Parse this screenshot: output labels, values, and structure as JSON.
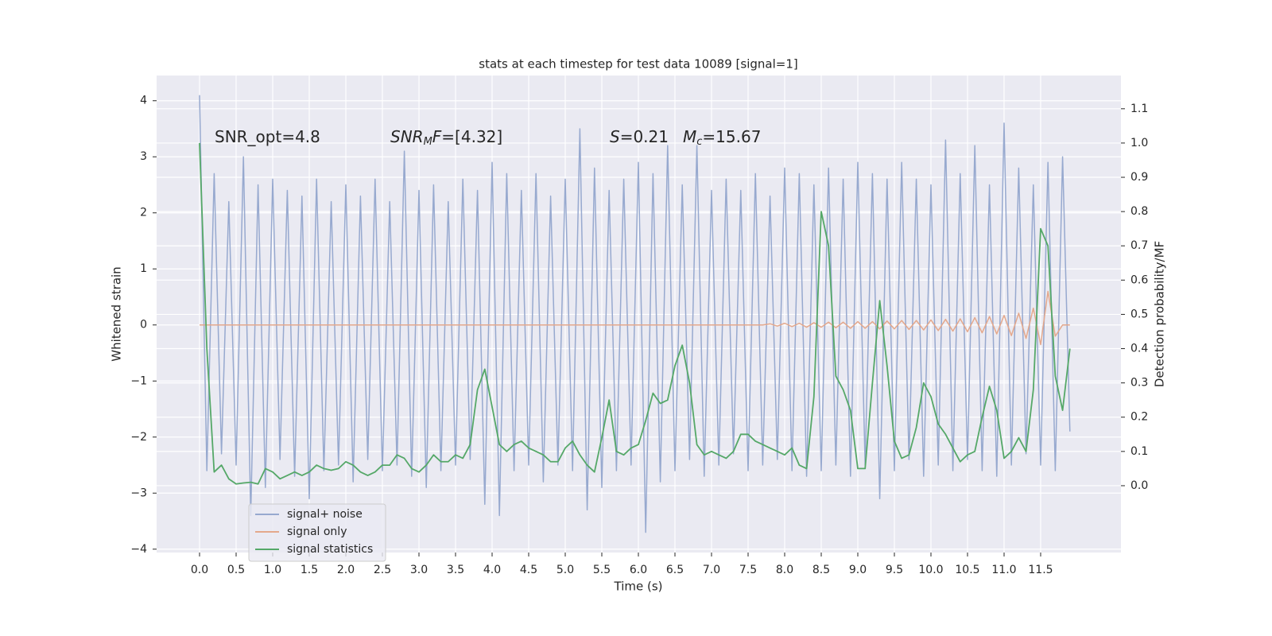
{
  "chart_data": {
    "type": "line",
    "title": "stats at each timestep for test data 10089 [signal=1]",
    "xlabel": "Time (s)",
    "ylabel": "Whitened strain",
    "y2label": "Detection probability/MF",
    "grid": true,
    "legend": "lower left",
    "xlim": [
      -0.587,
      12.598
    ],
    "ylim": [
      -4.06,
      4.45
    ],
    "y2lim": [
      -0.195,
      1.197
    ],
    "xticks": [
      {
        "value": 0,
        "label": "0.0"
      },
      0.5,
      {
        "value": 1,
        "label": "1.0"
      },
      1.5,
      {
        "value": 2,
        "label": "2.0"
      },
      2.5,
      {
        "value": 3,
        "label": "3.0"
      },
      3.5,
      {
        "value": 4,
        "label": "4.0"
      },
      4.5,
      {
        "value": 5,
        "label": "5.0"
      },
      5.5,
      {
        "value": 6,
        "label": "6.0"
      },
      6.5,
      {
        "value": 7,
        "label": "7.0"
      },
      7.5,
      {
        "value": 8,
        "label": "8.0"
      },
      8.5,
      {
        "value": 9,
        "label": "9.0"
      },
      9.5,
      {
        "value": 10,
        "label": "10.0"
      },
      10.5,
      {
        "value": 11,
        "label": "11.0"
      },
      11.5
    ],
    "yticks": [
      {
        "value": -4,
        "label": "−4"
      },
      {
        "value": -3,
        "label": "−3"
      },
      {
        "value": -2,
        "label": "−2"
      },
      {
        "value": -1,
        "label": "−1"
      },
      0,
      1,
      2,
      3,
      4
    ],
    "y2ticks": [
      {
        "value": 0,
        "label": "0.0"
      },
      0.1,
      0.2,
      0.3,
      0.4,
      0.5,
      0.6,
      0.7,
      0.8,
      0.9,
      {
        "value": 1,
        "label": "1.0"
      },
      1.1
    ],
    "annotations": [
      {
        "parts": [
          {
            "text": "SNR_opt=4.8"
          }
        ]
      },
      {
        "parts": [
          {
            "text": "SNR",
            "italic": true
          },
          {
            "text": "M",
            "italic": true,
            "sub": true
          },
          {
            "text": "F",
            "italic": true
          },
          {
            "text": "=[4.32]"
          }
        ]
      },
      {
        "parts": [
          {
            "text": "S",
            "italic": true
          },
          {
            "text": "=0.21"
          }
        ]
      },
      {
        "parts": [
          {
            "text": "M",
            "italic": true
          },
          {
            "text": "c",
            "italic": true,
            "sub": true
          },
          {
            "text": "=15.67"
          }
        ]
      }
    ],
    "x": [
      0,
      0.1,
      0.2,
      0.3,
      0.4,
      0.5,
      0.6,
      0.7,
      0.8,
      0.9,
      1,
      1.1,
      1.2,
      1.3,
      1.4,
      1.5,
      1.6,
      1.7,
      1.8,
      1.9,
      2,
      2.1,
      2.2,
      2.3,
      2.4,
      2.5,
      2.6,
      2.7,
      2.8,
      2.9,
      3,
      3.1,
      3.2,
      3.3,
      3.4,
      3.5,
      3.6,
      3.7,
      3.8,
      3.9,
      4,
      4.1,
      4.2,
      4.3,
      4.4,
      4.5,
      4.6,
      4.7,
      4.8,
      4.9,
      5,
      5.1,
      5.2,
      5.3,
      5.4,
      5.5,
      5.6,
      5.7,
      5.8,
      5.9,
      6,
      6.1,
      6.2,
      6.3,
      6.4,
      6.5,
      6.6,
      6.7,
      6.8,
      6.9,
      7,
      7.1,
      7.2,
      7.3,
      7.4,
      7.5,
      7.6,
      7.7,
      7.8,
      7.9,
      8,
      8.1,
      8.2,
      8.3,
      8.4,
      8.5,
      8.6,
      8.7,
      8.8,
      8.9,
      9,
      9.1,
      9.2,
      9.3,
      9.4,
      9.5,
      9.6,
      9.7,
      9.8,
      9.9,
      10,
      10.1,
      10.2,
      10.3,
      10.4,
      10.5,
      10.6,
      10.7,
      10.8,
      10.9,
      11,
      11.1,
      11.2,
      11.3,
      11.4,
      11.5,
      11.6,
      11.7,
      11.8,
      11.9
    ],
    "series": [
      {
        "name": "signal+ noise",
        "color": "#97a9cf",
        "values": [
          4.1,
          -2.6,
          2.7,
          -2.3,
          2.2,
          -2.5,
          3.0,
          -3.4,
          2.5,
          -2.9,
          2.6,
          -2.4,
          2.4,
          -2.7,
          2.3,
          -3.1,
          2.6,
          -2.6,
          2.2,
          -2.5,
          2.5,
          -2.8,
          2.3,
          -2.4,
          2.6,
          -2.6,
          2.2,
          -2.5,
          3.1,
          -2.7,
          2.4,
          -2.9,
          2.5,
          -2.6,
          2.2,
          -2.5,
          2.6,
          -2.4,
          2.4,
          -3.2,
          2.9,
          -3.4,
          2.7,
          -2.6,
          2.4,
          -2.5,
          2.7,
          -2.8,
          2.3,
          -2.5,
          2.6,
          -2.6,
          3.5,
          -3.3,
          2.8,
          -2.9,
          2.4,
          -2.6,
          2.6,
          -2.5,
          2.9,
          -3.7,
          2.7,
          -2.8,
          3.2,
          -2.6,
          2.5,
          -2.4,
          3.2,
          -2.7,
          2.4,
          -2.5,
          2.6,
          -2.3,
          2.4,
          -2.6,
          2.7,
          -2.5,
          2.3,
          -2.4,
          2.8,
          -2.6,
          2.7,
          -2.7,
          2.5,
          -2.6,
          2.8,
          -2.5,
          2.6,
          -2.7,
          2.9,
          -2.5,
          2.7,
          -3.1,
          2.6,
          -2.6,
          2.9,
          -2.4,
          2.6,
          -2.7,
          2.5,
          -2.5,
          3.3,
          -2.6,
          2.7,
          -2.4,
          3.2,
          -2.6,
          2.5,
          -2.7,
          3.6,
          -2.5,
          2.8,
          -2.3,
          2.5,
          -2.5,
          2.9,
          -2.6,
          3.0,
          -1.9
        ]
      },
      {
        "name": "signal only",
        "color": "#e4a88c",
        "values": [
          0,
          0,
          0,
          0,
          0,
          0,
          0,
          0,
          0,
          0,
          0,
          0,
          0,
          0,
          0,
          0,
          0,
          0,
          0,
          0,
          0,
          0,
          0,
          0,
          0,
          0,
          0,
          0,
          0,
          0,
          0,
          0,
          0,
          0,
          0,
          0,
          0,
          0,
          0,
          0,
          0,
          0,
          0,
          0,
          0,
          0,
          0,
          0,
          0,
          0,
          0,
          0,
          0,
          0,
          0,
          0,
          0,
          0,
          0,
          0,
          0,
          0,
          0,
          0,
          0,
          0,
          0,
          0,
          0,
          0,
          0,
          0,
          0,
          0,
          0,
          0,
          0,
          0,
          0.02,
          -0.02,
          0.03,
          -0.03,
          0.03,
          -0.04,
          0.04,
          -0.04,
          0.05,
          -0.05,
          0.05,
          -0.06,
          0.06,
          -0.06,
          0.06,
          -0.07,
          0.07,
          -0.07,
          0.08,
          -0.08,
          0.08,
          -0.09,
          0.09,
          -0.1,
          0.1,
          -0.11,
          0.11,
          -0.12,
          0.13,
          -0.14,
          0.15,
          -0.16,
          0.17,
          -0.19,
          0.21,
          -0.24,
          0.3,
          -0.35,
          0.6,
          -0.2,
          0,
          0
        ]
      },
      {
        "name": "signal statistics",
        "color": "#55a868",
        "axis": "y2",
        "values": [
          1.0,
          0.4,
          0.04,
          0.06,
          0.02,
          0.005,
          0.008,
          0.01,
          0.005,
          0.05,
          0.04,
          0.02,
          0.03,
          0.04,
          0.03,
          0.04,
          0.06,
          0.05,
          0.045,
          0.05,
          0.07,
          0.06,
          0.04,
          0.03,
          0.04,
          0.06,
          0.06,
          0.09,
          0.08,
          0.05,
          0.04,
          0.06,
          0.09,
          0.07,
          0.07,
          0.09,
          0.08,
          0.12,
          0.28,
          0.34,
          0.23,
          0.12,
          0.1,
          0.12,
          0.13,
          0.11,
          0.1,
          0.09,
          0.07,
          0.07,
          0.11,
          0.13,
          0.09,
          0.06,
          0.04,
          0.14,
          0.25,
          0.1,
          0.09,
          0.11,
          0.12,
          0.19,
          0.27,
          0.24,
          0.25,
          0.35,
          0.41,
          0.3,
          0.12,
          0.09,
          0.1,
          0.09,
          0.08,
          0.1,
          0.15,
          0.15,
          0.13,
          0.12,
          0.11,
          0.1,
          0.09,
          0.11,
          0.06,
          0.05,
          0.26,
          0.8,
          0.7,
          0.32,
          0.28,
          0.22,
          0.05,
          0.05,
          0.3,
          0.54,
          0.35,
          0.13,
          0.08,
          0.09,
          0.17,
          0.3,
          0.26,
          0.18,
          0.15,
          0.11,
          0.07,
          0.09,
          0.1,
          0.2,
          0.29,
          0.22,
          0.08,
          0.1,
          0.14,
          0.1,
          0.28,
          0.75,
          0.7,
          0.32,
          0.22,
          0.4
        ]
      }
    ]
  }
}
